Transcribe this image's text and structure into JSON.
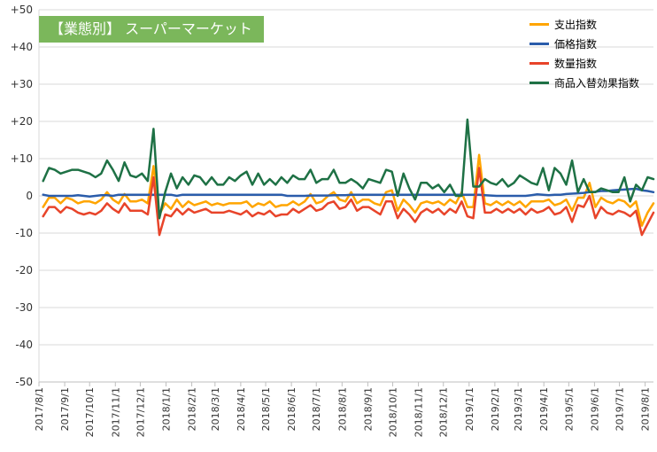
{
  "chart_data": {
    "type": "line",
    "title": "【業態別】 スーパーマーケット",
    "xlabel": "",
    "ylabel": "",
    "ylim": [
      -50,
      50
    ],
    "grid": true,
    "legend_position": "top-right",
    "y_ticks": [
      "+50",
      "+40",
      "+30",
      "+20",
      "+10",
      "0",
      "-10",
      "-20",
      "-30",
      "-40",
      "-50"
    ],
    "x_ticks": [
      "2017/8/1",
      "2017/9/1",
      "2017/10/1",
      "2017/11/1",
      "2017/12/1",
      "2018/1/1",
      "2018/2/1",
      "2018/3/1",
      "2018/4/1",
      "2018/5/1",
      "2018/6/1",
      "2018/7/1",
      "2018/8/1",
      "2018/9/1",
      "2018/10/1",
      "2018/11/1",
      "2018/12/1",
      "2019/1/1",
      "2019/2/1",
      "2019/3/1",
      "2019/4/1",
      "2019/5/1",
      "2019/6/1",
      "2019/7/1",
      "2019/8/1"
    ],
    "x": [
      "2017/8/6",
      "2017/8/13",
      "2017/8/20",
      "2017/8/27",
      "2017/9/3",
      "2017/9/10",
      "2017/9/17",
      "2017/9/24",
      "2017/10/1",
      "2017/10/8",
      "2017/10/15",
      "2017/10/22",
      "2017/10/29",
      "2017/11/5",
      "2017/11/12",
      "2017/11/19",
      "2017/11/26",
      "2017/12/3",
      "2017/12/10",
      "2017/12/17",
      "2017/12/24",
      "2017/12/31",
      "2018/1/7",
      "2018/1/14",
      "2018/1/21",
      "2018/1/28",
      "2018/2/4",
      "2018/2/11",
      "2018/2/18",
      "2018/2/25",
      "2018/3/4",
      "2018/3/11",
      "2018/3/18",
      "2018/3/25",
      "2018/4/1",
      "2018/4/8",
      "2018/4/15",
      "2018/4/22",
      "2018/4/29",
      "2018/5/6",
      "2018/5/13",
      "2018/5/20",
      "2018/5/27",
      "2018/6/3",
      "2018/6/10",
      "2018/6/17",
      "2018/6/24",
      "2018/7/1",
      "2018/7/8",
      "2018/7/15",
      "2018/7/22",
      "2018/7/29",
      "2018/8/5",
      "2018/8/12",
      "2018/8/19",
      "2018/8/26",
      "2018/9/2",
      "2018/9/9",
      "2018/9/16",
      "2018/9/23",
      "2018/9/30",
      "2018/10/7",
      "2018/10/14",
      "2018/10/21",
      "2018/10/28",
      "2018/11/4",
      "2018/11/11",
      "2018/11/18",
      "2018/11/25",
      "2018/12/2",
      "2018/12/9",
      "2018/12/16",
      "2018/12/23",
      "2018/12/30",
      "2019/1/6",
      "2019/1/13",
      "2019/1/20",
      "2019/1/27",
      "2019/2/3",
      "2019/2/10",
      "2019/2/17",
      "2019/2/24",
      "2019/3/3",
      "2019/3/10",
      "2019/3/17",
      "2019/3/24",
      "2019/3/31",
      "2019/4/7",
      "2019/4/14",
      "2019/4/21",
      "2019/4/28",
      "2019/5/5",
      "2019/5/12",
      "2019/5/19",
      "2019/5/26",
      "2019/6/2",
      "2019/6/9",
      "2019/6/16",
      "2019/6/23",
      "2019/6/30",
      "2019/7/7",
      "2019/7/14",
      "2019/7/21",
      "2019/7/28",
      "2019/8/4",
      "2019/8/11"
    ],
    "series": [
      {
        "name": "支出指数",
        "color": "#ffa500",
        "values": [
          -3,
          -0.5,
          -0.5,
          -2,
          -0.5,
          -1,
          -2,
          -1.5,
          -1.5,
          -2,
          -1,
          1,
          -1,
          -2,
          0.5,
          -1.5,
          -1.5,
          -1,
          -2,
          8,
          -5,
          -2,
          -3.5,
          -1,
          -3,
          -1.5,
          -2.5,
          -2,
          -1.5,
          -2.5,
          -2,
          -2.5,
          -2,
          -2,
          -2,
          -1.5,
          -3,
          -2,
          -2.5,
          -1.5,
          -3,
          -2.5,
          -2.5,
          -1.5,
          -2.5,
          -1.5,
          0.5,
          -2,
          -1.5,
          0,
          1,
          -1,
          -1.5,
          1,
          -2,
          -1,
          -1,
          -2,
          -2.5,
          1,
          1.5,
          -4,
          -1,
          -2.5,
          -4.5,
          -2,
          -1.5,
          -2,
          -1.5,
          -2.5,
          -1,
          -2,
          1,
          -3,
          -3,
          11,
          -2,
          -2.5,
          -1.5,
          -2.5,
          -1.5,
          -2.5,
          -1.5,
          -3,
          -1.5,
          -1.5,
          -1.5,
          -1,
          -2.5,
          -2,
          -1,
          -4,
          -0.5,
          -0.5,
          3.5,
          -3,
          -0.5,
          -1.5,
          -2,
          -1,
          -1.5,
          -3,
          -1.5,
          -8,
          -4.5,
          -2
        ]
      },
      {
        "name": "価格指数",
        "color": "#2a5caa",
        "values": [
          0.3,
          0,
          0,
          0,
          0,
          0,
          0.2,
          0,
          -0.2,
          0,
          0.2,
          0.2,
          0,
          0.3,
          0.3,
          0.3,
          0.3,
          0.3,
          0.3,
          0.3,
          0.3,
          0.3,
          0.3,
          0,
          0.3,
          0.3,
          0.3,
          0.3,
          0.3,
          0.3,
          0.3,
          0.3,
          0.3,
          0.3,
          0.3,
          0.3,
          0.3,
          0.3,
          0.3,
          0.3,
          0.3,
          0.3,
          0,
          0,
          0,
          0,
          0.1,
          0.1,
          0.1,
          0.1,
          0.2,
          0.2,
          0.2,
          0.3,
          0.3,
          0.3,
          0.3,
          0.3,
          0.3,
          0.3,
          0.3,
          0.3,
          0.3,
          0.3,
          0.3,
          0.3,
          0.3,
          0.3,
          0.3,
          0.3,
          0.3,
          0.3,
          0.3,
          0.3,
          0.3,
          0.3,
          0.2,
          0.1,
          0,
          0,
          0,
          0,
          0,
          0,
          0.2,
          0.4,
          0.3,
          0.2,
          0.3,
          0.3,
          0.5,
          0.6,
          0.7,
          0.8,
          1,
          1.1,
          1.3,
          1.3,
          1.5,
          1.6,
          1.7,
          1.8,
          1.9,
          1.5,
          1.3,
          1.0
        ]
      },
      {
        "name": "数量指数",
        "color": "#e8442a",
        "values": [
          -5.5,
          -3,
          -3,
          -4.5,
          -3,
          -3.5,
          -4.5,
          -5,
          -4.5,
          -5,
          -4,
          -2,
          -3.5,
          -4.5,
          -2,
          -4,
          -4,
          -4,
          -5,
          5,
          -10.5,
          -5,
          -5.5,
          -3.5,
          -5,
          -3.5,
          -4.5,
          -4,
          -3.5,
          -4.5,
          -4.5,
          -4.5,
          -4,
          -4.5,
          -5,
          -4,
          -5.5,
          -4.5,
          -5,
          -4,
          -5.5,
          -5,
          -5,
          -3.5,
          -4.5,
          -3.5,
          -2.5,
          -4,
          -3.5,
          -2,
          -1.5,
          -3.5,
          -3,
          -1,
          -4,
          -3,
          -3,
          -4,
          -5,
          -1.5,
          -1.5,
          -6,
          -3.5,
          -5,
          -7,
          -4.5,
          -3.5,
          -4.5,
          -3.5,
          -5,
          -3.5,
          -4.5,
          -1.5,
          -5.5,
          -6,
          7.5,
          -4.5,
          -4.5,
          -3.5,
          -4.5,
          -3.5,
          -4.5,
          -3.5,
          -5,
          -3.5,
          -4.5,
          -4,
          -3,
          -5,
          -4.5,
          -3,
          -7,
          -2.5,
          -3,
          0,
          -6,
          -3,
          -4.5,
          -5,
          -4,
          -4.5,
          -5.5,
          -4,
          -10.5,
          -7.5,
          -4.5
        ]
      },
      {
        "name": "商品入替効果指数",
        "color": "#1e7145",
        "values": [
          4,
          7.5,
          7,
          6,
          6.5,
          7,
          7,
          6.5,
          6,
          5,
          6,
          9.5,
          7,
          4,
          9,
          5.5,
          5,
          6,
          4,
          18,
          -6,
          1,
          6,
          2,
          5,
          3,
          5.5,
          5,
          3,
          5,
          3,
          3,
          5,
          4,
          5.5,
          6.5,
          3,
          6,
          3,
          4.5,
          3,
          5,
          3.5,
          5.5,
          4.5,
          4.5,
          7,
          3.5,
          4.5,
          4.5,
          7,
          3.5,
          3.5,
          4.5,
          3.5,
          2,
          4.5,
          4,
          3.5,
          7,
          6.5,
          0,
          6,
          2,
          -1,
          3.5,
          3.5,
          2,
          3,
          1,
          3,
          0,
          0,
          20.5,
          2.5,
          2.5,
          4.5,
          3.5,
          3,
          4.5,
          2.5,
          3.5,
          5.5,
          4.5,
          3.5,
          3,
          7.5,
          1.5,
          7.5,
          6,
          3,
          9.5,
          1,
          4.5,
          1,
          1,
          2,
          1.5,
          1,
          1,
          5,
          -1.5,
          3,
          1.5,
          5,
          4.5
        ]
      }
    ]
  }
}
